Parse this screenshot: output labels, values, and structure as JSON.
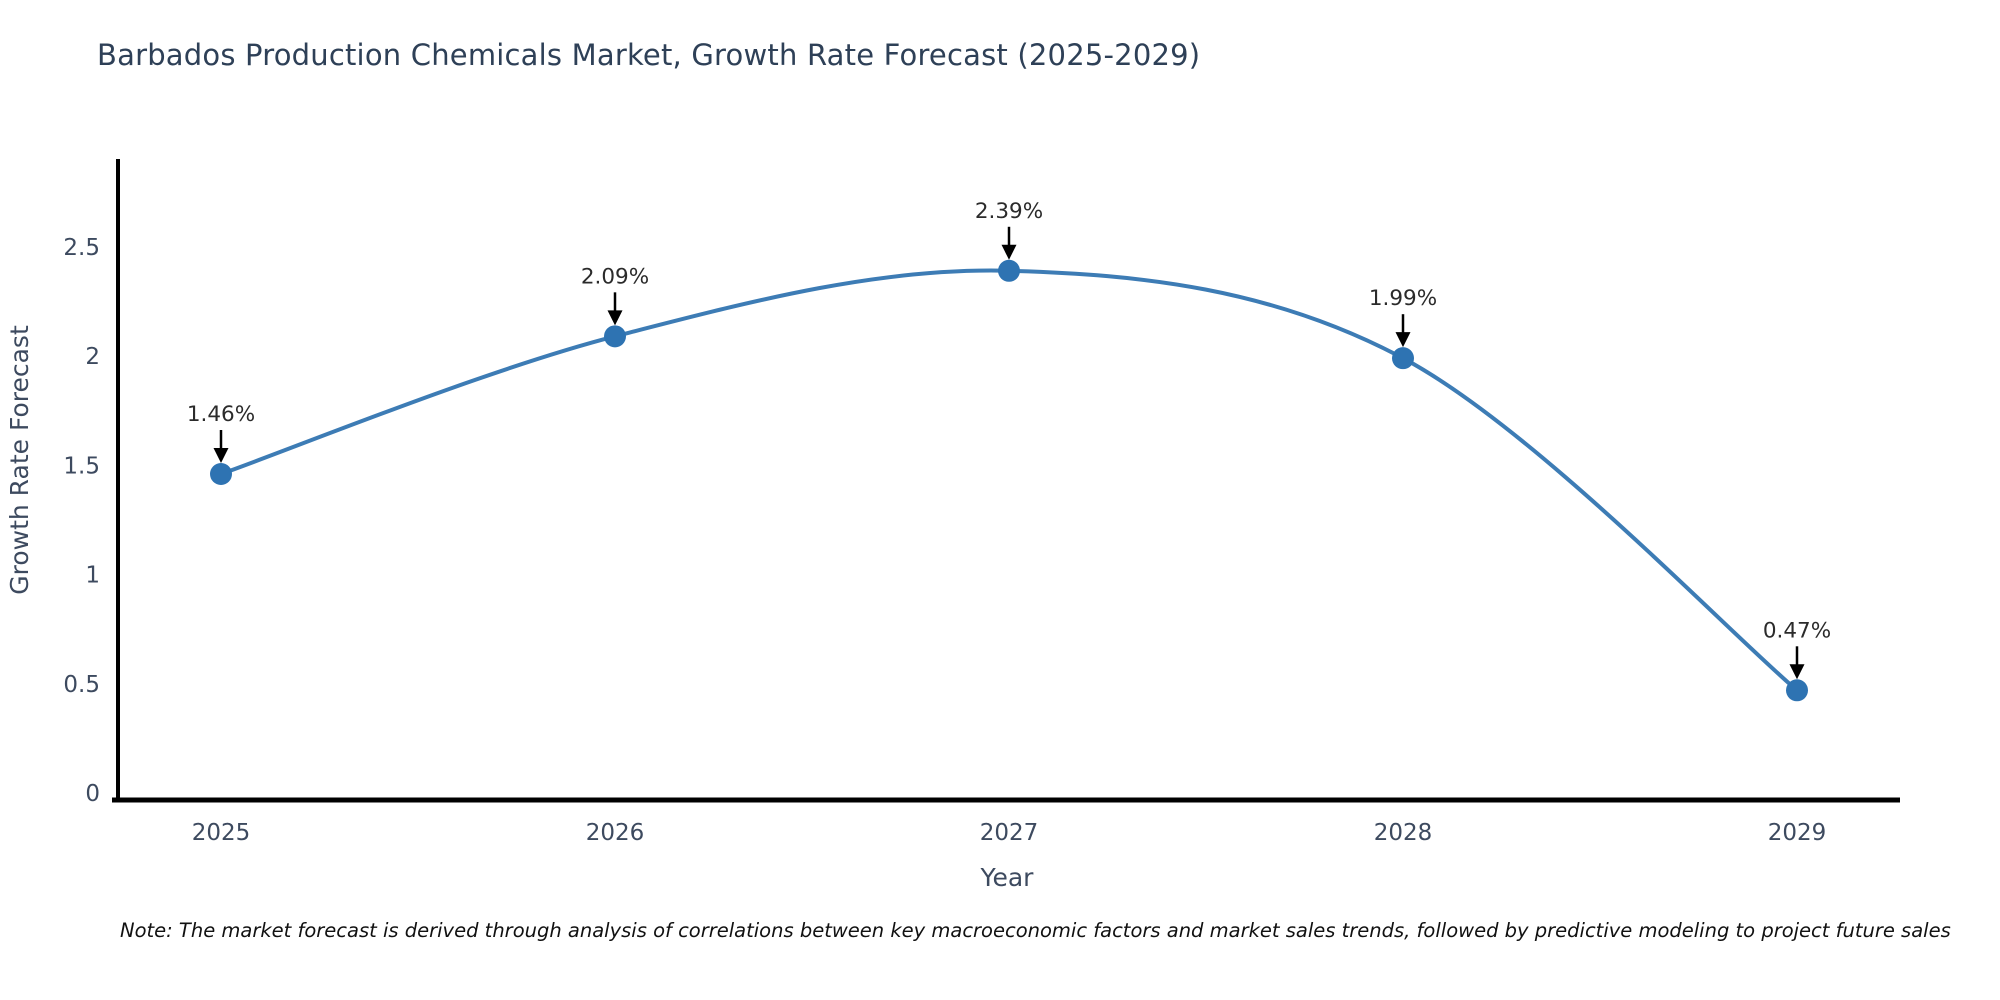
{
  "title": "Barbados Production Chemicals Market, Growth Rate Forecast (2025-2029)",
  "note": "Note: The market forecast is derived through analysis of correlations between key macroeconomic factors and market sales trends, followed by predictive modeling to project future sales",
  "chart_data": {
    "type": "line",
    "title": "Barbados Production Chemicals Market, Growth Rate Forecast (2025-2029)",
    "x": [
      "2025",
      "2026",
      "2027",
      "2028",
      "2029"
    ],
    "series": [
      {
        "name": "Growth Rate Forecast",
        "values": [
          1.46,
          2.09,
          2.39,
          1.99,
          0.47
        ]
      }
    ],
    "point_labels": [
      "1.46%",
      "2.09%",
      "2.39%",
      "1.99%",
      "0.47%"
    ],
    "xlabel": "Year",
    "ylabel": "Growth Rate Forecast",
    "y_tick_labels": [
      "0",
      "0.5",
      "1",
      "1.5",
      "2",
      "2.5"
    ],
    "y_ticks": [
      0,
      0.5,
      1,
      1.5,
      2,
      2.5
    ],
    "ylim": [
      0,
      2.9
    ],
    "grid": false,
    "legend": "none",
    "line_color": "#3d7cb5",
    "marker_color": "#2e73b2",
    "annotation_color": "#2b2b2b",
    "arrow_color": "#000000",
    "axis_color": "#000000",
    "tick_label_color": "#3d4a5f"
  }
}
